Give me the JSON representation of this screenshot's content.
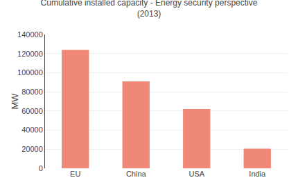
{
  "chart_data": {
    "type": "bar",
    "title": "Cumulative installed capacity - Energy security perspective",
    "subtitle": "(2013)",
    "y_label": "MW",
    "categories": [
      "EU",
      "China",
      "USA",
      "India"
    ],
    "values": [
      124000,
      91000,
      62000,
      20500
    ],
    "color": "#F08878",
    "ylim": [
      0,
      140000
    ],
    "yticks": [
      0,
      20000,
      40000,
      60000,
      80000,
      100000,
      120000,
      140000
    ],
    "grid": true
  }
}
